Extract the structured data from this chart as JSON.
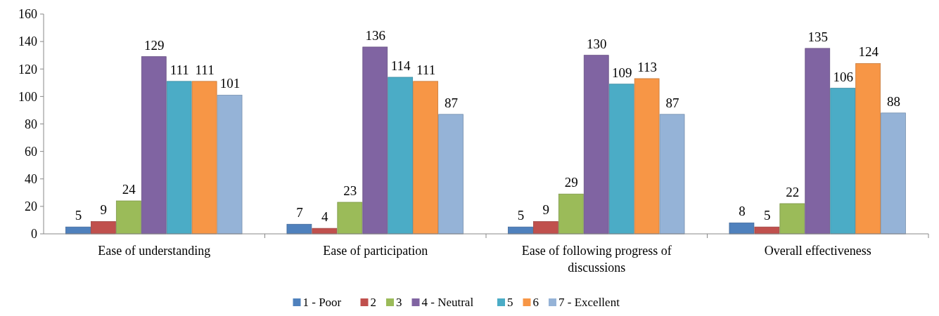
{
  "chart_data": {
    "type": "bar",
    "categories": [
      "Ease of understanding",
      "Ease of participation",
      "Ease of following progress of discussions",
      "Overall effectiveness"
    ],
    "series": [
      {
        "name": "1 - Poor",
        "color": "#4f81bd",
        "values": [
          5,
          7,
          5,
          8
        ]
      },
      {
        "name": "2",
        "color": "#c0504d",
        "values": [
          9,
          4,
          9,
          5
        ]
      },
      {
        "name": "3",
        "color": "#9bbb59",
        "values": [
          24,
          23,
          29,
          22
        ]
      },
      {
        "name": "4 - Neutral",
        "color": "#8064a2",
        "values": [
          129,
          136,
          130,
          135
        ]
      },
      {
        "name": "5",
        "color": "#4bacc6",
        "values": [
          111,
          114,
          109,
          106
        ]
      },
      {
        "name": "6",
        "color": "#f79646",
        "values": [
          111,
          111,
          113,
          124
        ]
      },
      {
        "name": "7 - Excellent",
        "color": "#95b3d7",
        "values": [
          101,
          87,
          87,
          88
        ]
      }
    ],
    "ylim": [
      0,
      160
    ],
    "yticks": [
      0,
      20,
      40,
      60,
      80,
      100,
      120,
      140,
      160
    ],
    "data_labels": true,
    "legend": "bottom",
    "grid": false
  }
}
